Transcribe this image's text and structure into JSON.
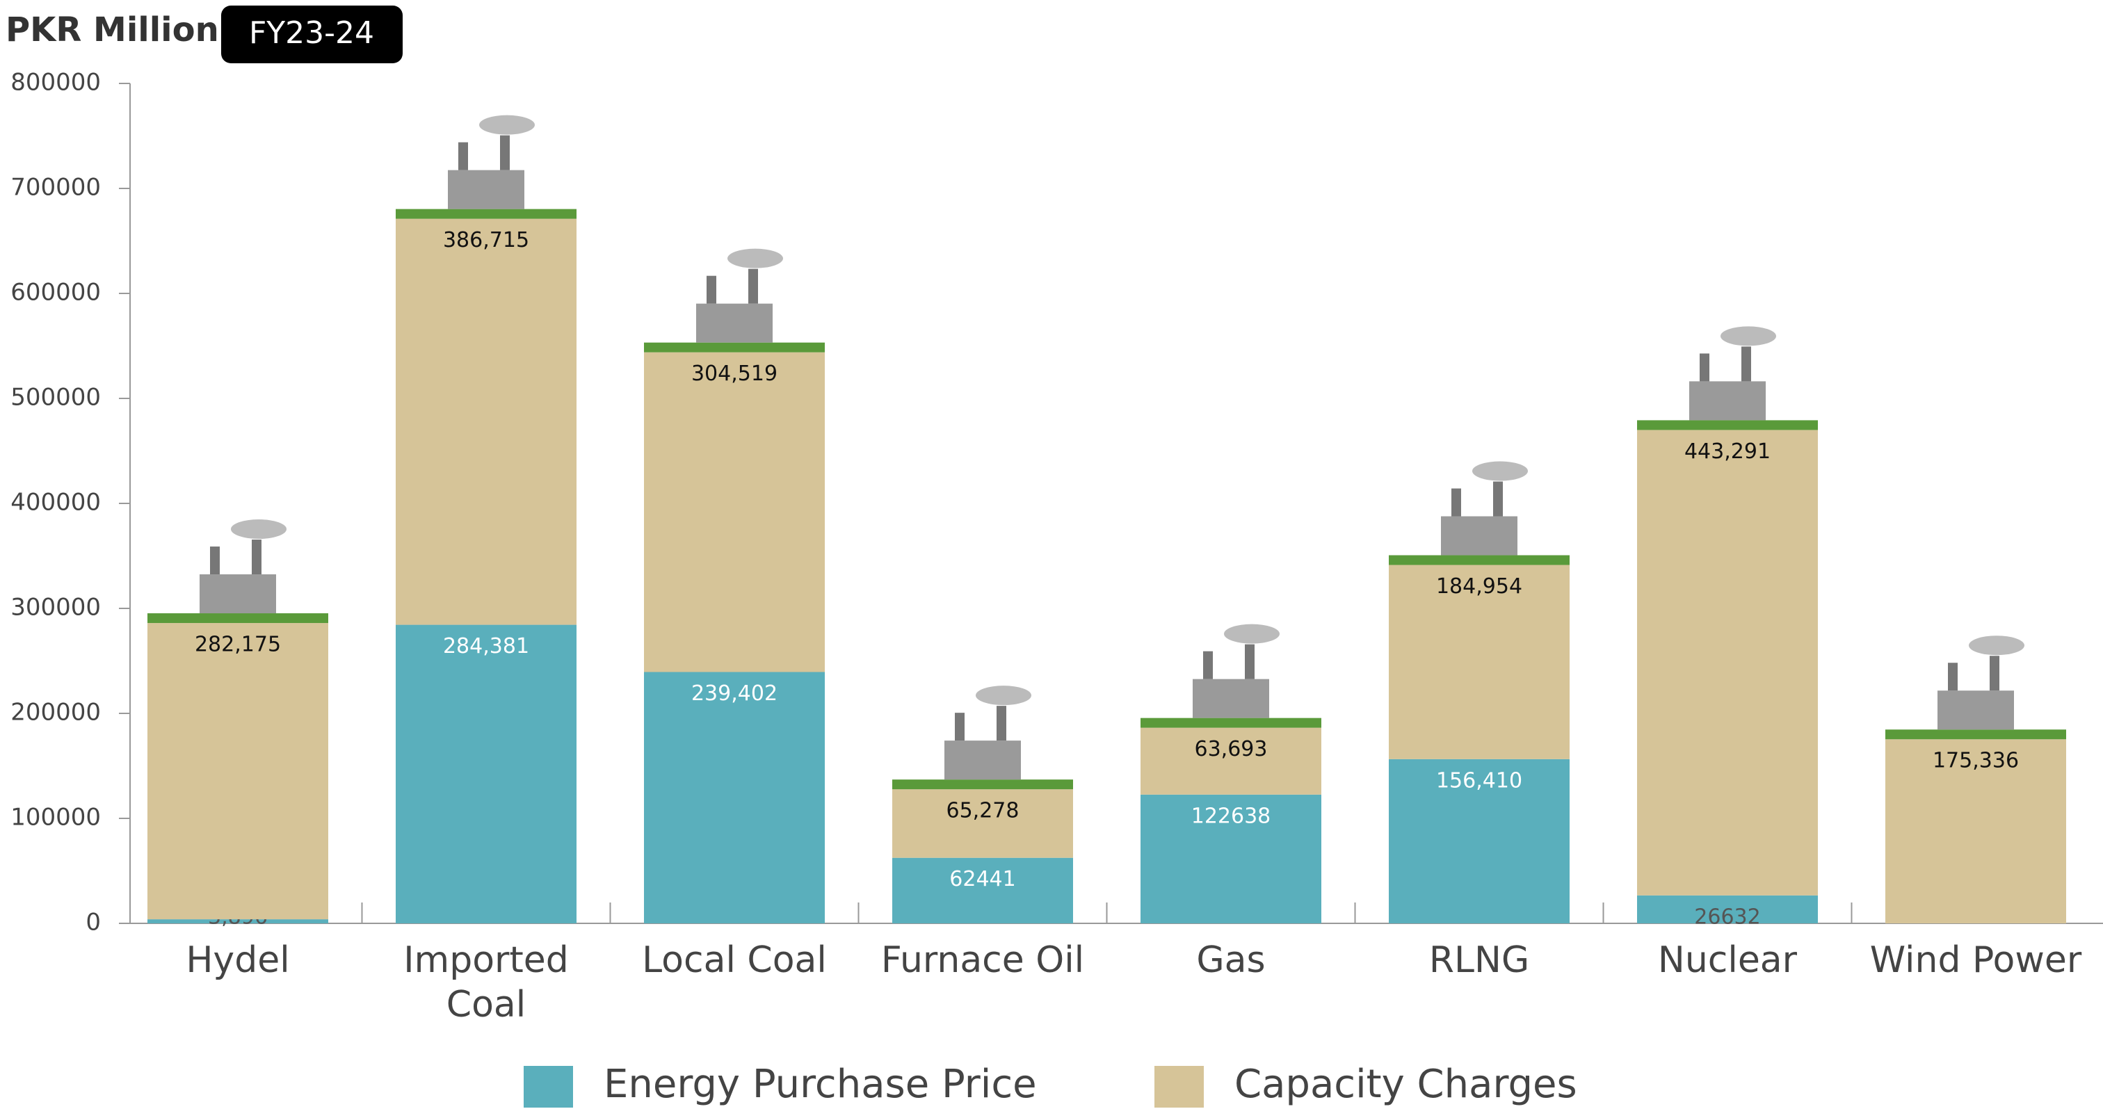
{
  "chart_data": {
    "type": "stacked_bar",
    "title": "PKR Million",
    "subtitle": "FY23-24",
    "categories": [
      "Hydel",
      "Imported Coal",
      "Local Coal",
      "Furnace Oil",
      "Gas",
      "RLNG",
      "Nuclear",
      "Wind Power"
    ],
    "series": [
      {
        "name": "Energy Purchase Price",
        "color": "#5aafbc",
        "values": [
          3896,
          284381,
          239402,
          62441,
          122638,
          156410,
          26632,
          null
        ],
        "value_labels": [
          "3,896",
          "284,381",
          "239,402",
          "62441",
          "122638",
          "156,410",
          "26632",
          null
        ]
      },
      {
        "name": "Capacity Charges",
        "color": "#d6c498",
        "values": [
          282175,
          386715,
          304519,
          65278,
          63693,
          184954,
          443291,
          175336
        ],
        "value_labels": [
          "282,175",
          "386,715",
          "304,519",
          "65,278",
          "63,693",
          "184,954",
          "443,291",
          "175,336"
        ]
      }
    ],
    "ylim": [
      0,
      800000
    ],
    "yticks": [
      0,
      100000,
      200000,
      300000,
      400000,
      500000,
      600000,
      700000,
      800000
    ]
  }
}
